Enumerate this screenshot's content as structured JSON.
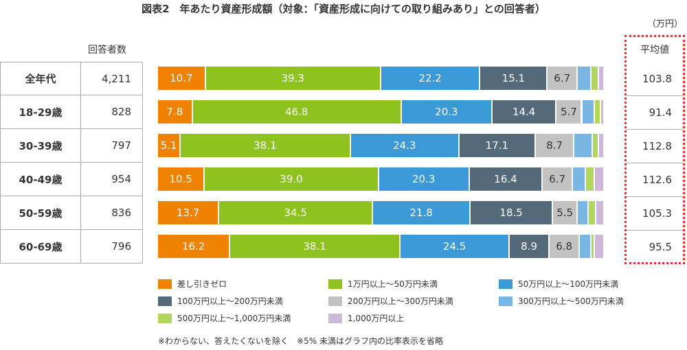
{
  "chart_data": {
    "type": "bar",
    "orientation": "horizontal-stacked-100",
    "title": "図表2　年あたり資産形成額（対象：「資産形成に向けての取り組みあり」との回答者）",
    "unit": "（万円）",
    "respondents_header": "回答者数",
    "average_header": "平均値",
    "categories": [
      "全年代",
      "18-29歳",
      "30-39歳",
      "40-49歳",
      "50-59歳",
      "60-69歳"
    ],
    "respondents": [
      "4,211",
      "828",
      "797",
      "954",
      "836",
      "796"
    ],
    "averages": [
      "103.8",
      "91.4",
      "112.8",
      "112.6",
      "105.3",
      "95.5"
    ],
    "series": [
      {
        "name": "差し引きゼロ",
        "color": "#ef8200",
        "text": "#fff",
        "values": [
          10.7,
          7.8,
          5.1,
          10.5,
          13.7,
          16.2
        ]
      },
      {
        "name": "1万円以上～50万円未満",
        "color": "#8dc21f",
        "text": "#fff",
        "values": [
          39.3,
          46.8,
          38.1,
          39.0,
          34.5,
          38.1
        ]
      },
      {
        "name": "50万円以上～100万円未満",
        "color": "#3c99d8",
        "text": "#fff",
        "values": [
          22.2,
          20.3,
          24.3,
          20.3,
          21.8,
          24.5
        ]
      },
      {
        "name": "100万円以上～200万円未満",
        "color": "#546a7b",
        "text": "#fff",
        "values": [
          15.1,
          14.4,
          17.1,
          16.4,
          18.5,
          8.9
        ]
      },
      {
        "name": "200万円以上～300万円未満",
        "color": "#c2c2c2",
        "text": "#333",
        "values": [
          6.7,
          5.7,
          8.7,
          6.7,
          5.5,
          6.8
        ]
      },
      {
        "name": "300万円以上～500万円未満",
        "color": "#7ab6e3",
        "text": "#333",
        "values": [
          3.1,
          2.9,
          4.1,
          3.0,
          2.5,
          2.5
        ]
      },
      {
        "name": "500万円以上～1,000万円未満",
        "color": "#b0d65c",
        "text": "#333",
        "values": [
          1.6,
          1.3,
          1.4,
          2.0,
          1.7,
          0.9
        ]
      },
      {
        "name": "1,000万円以上",
        "color": "#cdb8da",
        "text": "#333",
        "values": [
          1.3,
          0.8,
          1.2,
          2.1,
          1.8,
          2.1
        ]
      }
    ],
    "label_threshold": 5,
    "xlim": [
      0,
      100
    ]
  },
  "note": "※わからない、答えたくないを除く　※5% 未満はグラフ内の比率表示を省略"
}
